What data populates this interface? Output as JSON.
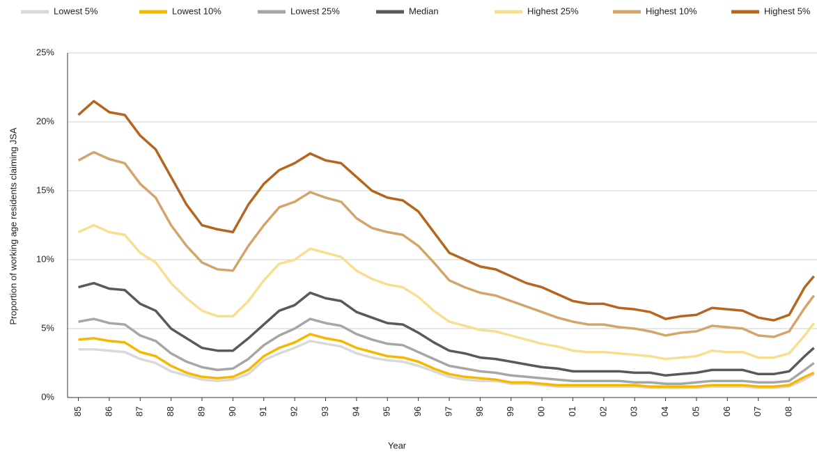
{
  "chart_data": {
    "type": "line",
    "y_label": "Proportion of working age residents claiming JSA",
    "x_label": "Year",
    "x": [
      1985,
      1985.5,
      1986,
      1986.5,
      1987,
      1987.5,
      1988,
      1988.5,
      1989,
      1989.5,
      1990,
      1990.5,
      1991,
      1991.5,
      1992,
      1992.5,
      1993,
      1993.5,
      1994,
      1994.5,
      1995,
      1995.5,
      1996,
      1996.5,
      1997,
      1997.5,
      1998,
      1998.5,
      1999,
      1999.5,
      2000,
      2000.5,
      2001,
      2001.5,
      2002,
      2002.5,
      2003,
      2003.5,
      2004,
      2004.5,
      2005,
      2005.5,
      2006,
      2006.5,
      2007,
      2007.5,
      2008,
      2008.5,
      2008.8
    ],
    "series": [
      {
        "name": "Lowest 5%",
        "color": "#d9d9d9",
        "values": [
          3.5,
          3.5,
          3.4,
          3.3,
          2.8,
          2.5,
          1.9,
          1.6,
          1.3,
          1.2,
          1.3,
          1.7,
          2.7,
          3.2,
          3.6,
          4.1,
          3.9,
          3.7,
          3.2,
          2.9,
          2.7,
          2.6,
          2.3,
          1.9,
          1.5,
          1.3,
          1.2,
          1.2,
          1.0,
          1.0,
          0.9,
          0.8,
          0.8,
          0.8,
          0.8,
          0.8,
          0.8,
          0.7,
          0.7,
          0.7,
          0.7,
          0.8,
          0.8,
          0.8,
          0.7,
          0.7,
          0.8,
          1.3,
          1.7
        ]
      },
      {
        "name": "Lowest 10%",
        "color": "#f5b800",
        "values": [
          4.2,
          4.3,
          4.1,
          4.0,
          3.3,
          3.0,
          2.3,
          1.8,
          1.5,
          1.4,
          1.5,
          2.0,
          3.0,
          3.6,
          4.0,
          4.6,
          4.3,
          4.1,
          3.6,
          3.3,
          3.0,
          2.9,
          2.6,
          2.1,
          1.7,
          1.5,
          1.4,
          1.3,
          1.1,
          1.1,
          1.0,
          0.9,
          0.9,
          0.9,
          0.9,
          0.9,
          0.9,
          0.8,
          0.8,
          0.8,
          0.8,
          0.9,
          0.9,
          0.9,
          0.8,
          0.8,
          0.9,
          1.5,
          1.8
        ]
      },
      {
        "name": "Lowest 25%",
        "color": "#a6a6a6",
        "values": [
          5.5,
          5.7,
          5.4,
          5.3,
          4.5,
          4.1,
          3.2,
          2.6,
          2.2,
          2.0,
          2.1,
          2.8,
          3.8,
          4.5,
          5.0,
          5.7,
          5.4,
          5.2,
          4.6,
          4.2,
          3.9,
          3.8,
          3.3,
          2.8,
          2.3,
          2.1,
          1.9,
          1.8,
          1.6,
          1.5,
          1.4,
          1.3,
          1.2,
          1.2,
          1.2,
          1.2,
          1.1,
          1.1,
          1.0,
          1.0,
          1.1,
          1.2,
          1.2,
          1.2,
          1.1,
          1.1,
          1.2,
          2.0,
          2.5
        ]
      },
      {
        "name": "Median",
        "color": "#595959",
        "values": [
          8.0,
          8.3,
          7.9,
          7.8,
          6.8,
          6.3,
          5.0,
          4.3,
          3.6,
          3.4,
          3.4,
          4.3,
          5.3,
          6.3,
          6.7,
          7.6,
          7.2,
          7.0,
          6.2,
          5.8,
          5.4,
          5.3,
          4.7,
          4.0,
          3.4,
          3.2,
          2.9,
          2.8,
          2.6,
          2.4,
          2.2,
          2.1,
          1.9,
          1.9,
          1.9,
          1.9,
          1.8,
          1.8,
          1.6,
          1.7,
          1.8,
          2.0,
          2.0,
          2.0,
          1.7,
          1.7,
          1.9,
          3.0,
          3.6
        ]
      },
      {
        "name": "Highest 25%",
        "color": "#f7df8f",
        "values": [
          12.0,
          12.5,
          12.0,
          11.8,
          10.5,
          9.8,
          8.3,
          7.2,
          6.3,
          5.9,
          5.9,
          7.0,
          8.5,
          9.7,
          10.0,
          10.8,
          10.5,
          10.2,
          9.2,
          8.6,
          8.2,
          8.0,
          7.3,
          6.3,
          5.5,
          5.2,
          4.9,
          4.8,
          4.5,
          4.2,
          3.9,
          3.7,
          3.4,
          3.3,
          3.3,
          3.2,
          3.1,
          3.0,
          2.8,
          2.9,
          3.0,
          3.4,
          3.3,
          3.3,
          2.9,
          2.9,
          3.2,
          4.5,
          5.4
        ]
      },
      {
        "name": "Highest 10%",
        "color": "#d4a56a",
        "values": [
          17.2,
          17.8,
          17.3,
          17.0,
          15.5,
          14.5,
          12.5,
          11.0,
          9.8,
          9.3,
          9.2,
          11.0,
          12.5,
          13.8,
          14.2,
          14.9,
          14.5,
          14.2,
          13.0,
          12.3,
          12.0,
          11.8,
          11.0,
          9.8,
          8.5,
          8.0,
          7.6,
          7.4,
          7.0,
          6.6,
          6.2,
          5.8,
          5.5,
          5.3,
          5.3,
          5.1,
          5.0,
          4.8,
          4.5,
          4.7,
          4.8,
          5.2,
          5.1,
          5.0,
          4.5,
          4.4,
          4.8,
          6.5,
          7.4
        ]
      },
      {
        "name": "Highest 5%",
        "color": "#b5651d",
        "values": [
          20.5,
          21.5,
          20.7,
          20.5,
          19.0,
          18.0,
          16.0,
          14.0,
          12.5,
          12.2,
          12.0,
          14.0,
          15.5,
          16.5,
          17.0,
          17.7,
          17.2,
          17.0,
          16.0,
          15.0,
          14.5,
          14.3,
          13.5,
          12.0,
          10.5,
          10.0,
          9.5,
          9.3,
          8.8,
          8.3,
          8.0,
          7.5,
          7.0,
          6.8,
          6.8,
          6.5,
          6.4,
          6.2,
          5.7,
          5.9,
          6.0,
          6.5,
          6.4,
          6.3,
          5.8,
          5.6,
          6.0,
          8.0,
          8.8
        ]
      }
    ],
    "xlim": [
      1984.65,
      2008.9
    ],
    "xticks": [
      {
        "value": 1985,
        "label": "85"
      },
      {
        "value": 1986,
        "label": "86"
      },
      {
        "value": 1987,
        "label": "87"
      },
      {
        "value": 1988,
        "label": "88"
      },
      {
        "value": 1989,
        "label": "89"
      },
      {
        "value": 1990,
        "label": "90"
      },
      {
        "value": 1991,
        "label": "91"
      },
      {
        "value": 1992,
        "label": "92"
      },
      {
        "value": 1993,
        "label": "93"
      },
      {
        "value": 1994,
        "label": "94"
      },
      {
        "value": 1995,
        "label": "95"
      },
      {
        "value": 1996,
        "label": "96"
      },
      {
        "value": 1997,
        "label": "97"
      },
      {
        "value": 1998,
        "label": "98"
      },
      {
        "value": 1999,
        "label": "99"
      },
      {
        "value": 2000,
        "label": "00"
      },
      {
        "value": 2001,
        "label": "01"
      },
      {
        "value": 2002,
        "label": "02"
      },
      {
        "value": 2003,
        "label": "03"
      },
      {
        "value": 2004,
        "label": "04"
      },
      {
        "value": 2005,
        "label": "05"
      },
      {
        "value": 2006,
        "label": "06"
      },
      {
        "value": 2007,
        "label": "07"
      },
      {
        "value": 2008,
        "label": "08"
      }
    ],
    "ylim": [
      0,
      25
    ],
    "yticks": [
      {
        "value": 0,
        "label": "0%"
      },
      {
        "value": 5,
        "label": "5%"
      },
      {
        "value": 10,
        "label": "10%"
      },
      {
        "value": 15,
        "label": "15%"
      },
      {
        "value": 20,
        "label": "20%"
      },
      {
        "value": 25,
        "label": "25%"
      }
    ],
    "grid": true,
    "legend": "top"
  }
}
